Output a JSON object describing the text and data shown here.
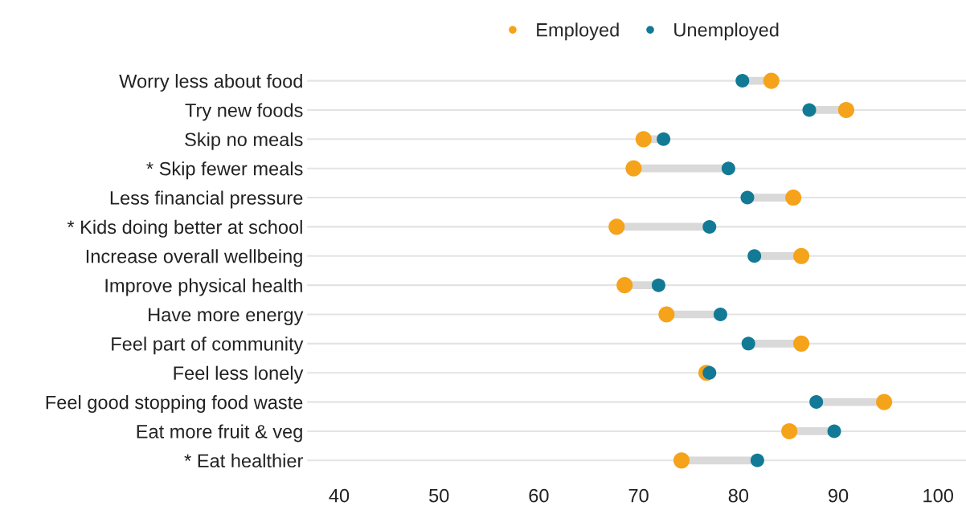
{
  "chart_data": {
    "type": "scatter",
    "categories": [
      "Worry less about food",
      "Try new foods",
      "Skip no meals",
      "* Skip fewer meals",
      "Less financial pressure",
      "* Kids doing better at school",
      "Increase overall wellbeing",
      "Improve physical health",
      "Have more energy",
      "Feel part of community",
      "Feel less lonely",
      "Feel good stopping food waste",
      "Eat more fruit & veg",
      "* Eat healthier"
    ],
    "orientation": "horizontal",
    "series": [
      {
        "name": "Employed",
        "color": "#f5a31a",
        "values": [
          83.3,
          90.8,
          70.5,
          69.5,
          85.5,
          67.8,
          86.3,
          68.6,
          72.8,
          86.3,
          76.8,
          94.6,
          85.1,
          74.3
        ]
      },
      {
        "name": "Unemployed",
        "color": "#137a96",
        "values": [
          80.4,
          87.1,
          72.5,
          79.0,
          80.9,
          77.1,
          81.6,
          72.0,
          78.2,
          81.0,
          77.1,
          87.8,
          89.6,
          81.9
        ]
      }
    ],
    "xlim": [
      36.8,
      102.8
    ],
    "xticks": [
      40,
      50,
      60,
      70,
      80,
      90,
      100
    ],
    "grid": "y",
    "legend": "top",
    "marker": "circle"
  }
}
